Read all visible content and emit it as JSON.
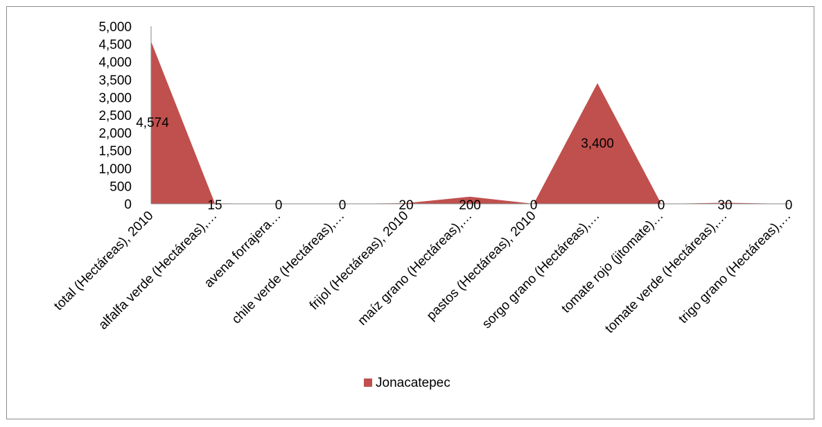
{
  "chart_data": {
    "type": "area",
    "categories": [
      "total (Hectáreas), 2010",
      "alfalfa verde (Hectáreas),…",
      "avena forrajera…",
      "chile verde (Hectáreas),…",
      "frijol (Hectáreas), 2010",
      "maíz grano (Hectáreas),…",
      "pastos (Hectáreas), 2010",
      "sorgo grano (Hectáreas),…",
      "tomate rojo (jitomate)…",
      "tomate verde (Hectáreas),…",
      "trigo grano (Hectáreas),…"
    ],
    "series": [
      {
        "name": "Jonacatepec",
        "values": [
          4574,
          15,
          0,
          0,
          20,
          200,
          0,
          3400,
          0,
          30,
          0
        ],
        "data_labels": [
          "4,574",
          "15",
          "0",
          "0",
          "20",
          "200",
          "0",
          "3,400",
          "0",
          "30",
          "0"
        ]
      }
    ],
    "y_ticks": [
      "0",
      "500",
      "1,000",
      "1,500",
      "2,000",
      "2,500",
      "3,000",
      "3,500",
      "4,000",
      "4,500",
      "5,000"
    ],
    "ylim": [
      0,
      5000
    ],
    "title": "",
    "xlabel": "",
    "ylabel": "",
    "grid": false,
    "legend": "bottom",
    "colors": {
      "series": "#c0504d",
      "axis": "#868686"
    }
  }
}
